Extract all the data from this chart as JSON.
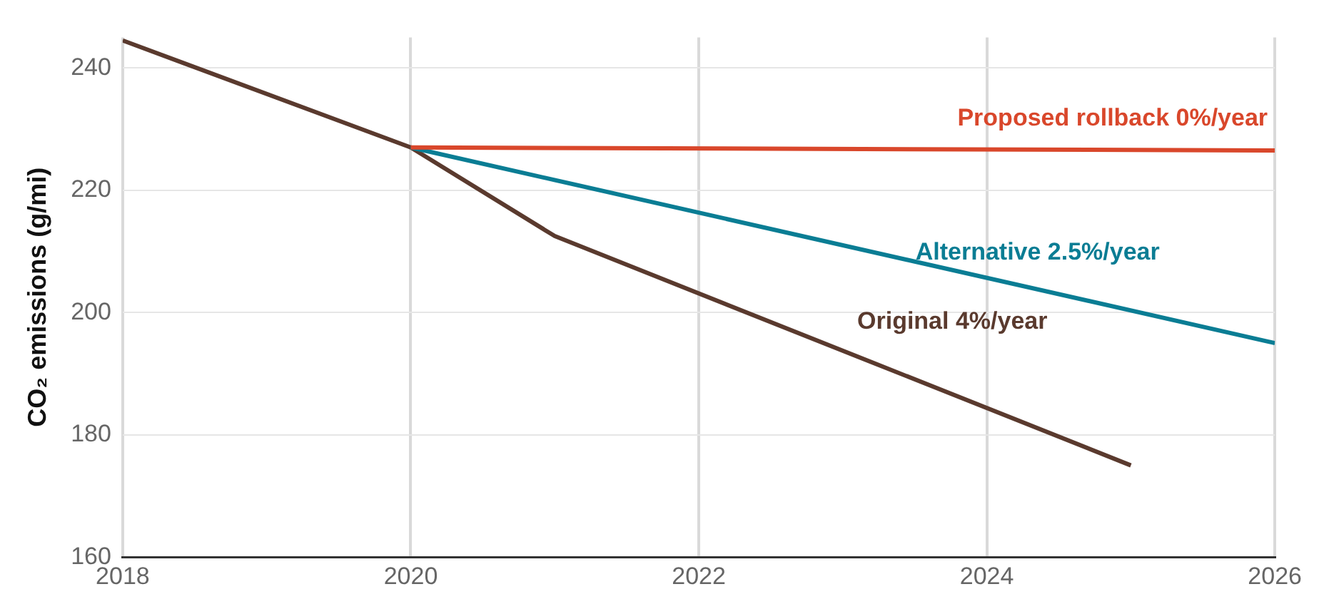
{
  "chart_data": {
    "type": "line",
    "ylabel": "CO₂ emissions (g/mi)",
    "xlim": [
      2018,
      2026
    ],
    "xticks": [
      2018,
      2020,
      2022,
      2024,
      2026
    ],
    "ylim": [
      160,
      245
    ],
    "yticks": [
      160,
      180,
      200,
      220,
      240
    ],
    "grid": true,
    "legend": false,
    "marker": "none",
    "line_style": "solid",
    "series": [
      {
        "name": "Proposed rollback 0%/year",
        "color": "#d9472b",
        "x": [
          2020,
          2026
        ],
        "values": [
          227,
          226.5
        ]
      },
      {
        "name": "Alternative 2.5%/year",
        "color": "#0a7d94",
        "x": [
          2020,
          2026
        ],
        "values": [
          227,
          195
        ]
      },
      {
        "name": "Original 4%/year",
        "color": "#5a3a2e",
        "x": [
          2018,
          2020,
          2021,
          2025
        ],
        "values": [
          244.5,
          227,
          212.5,
          175
        ]
      }
    ]
  }
}
